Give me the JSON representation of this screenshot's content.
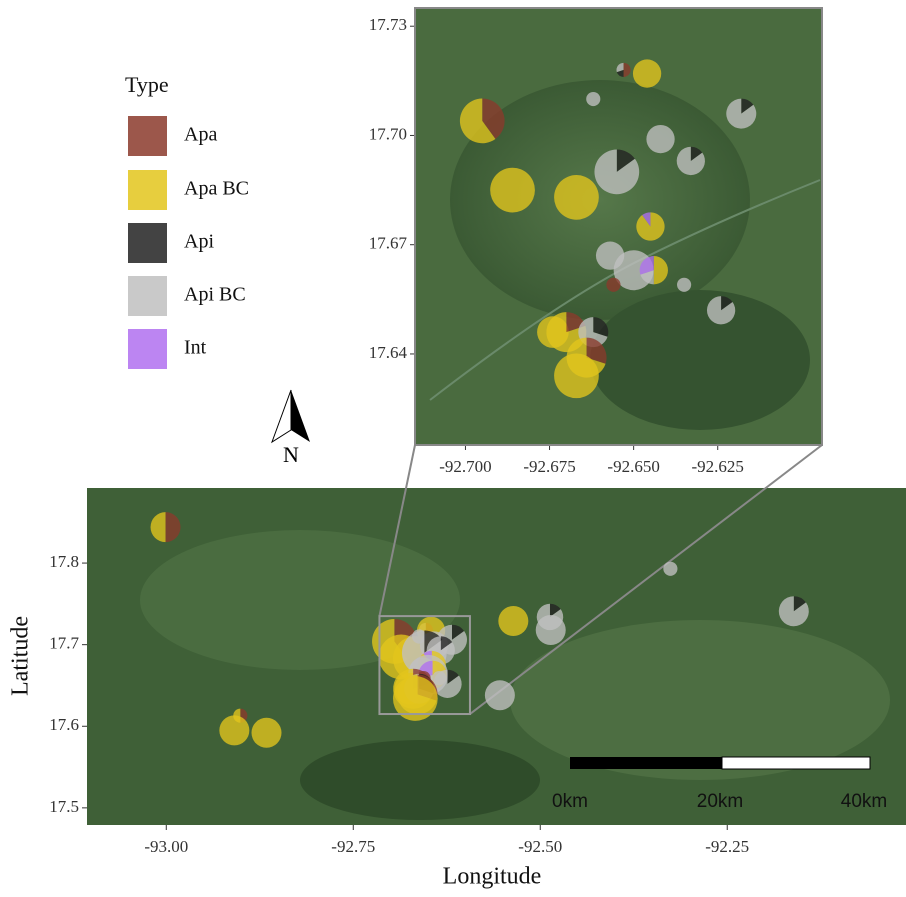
{
  "legend": {
    "title": "Type",
    "items": [
      {
        "label": "Apa",
        "color": "#8b3a2b"
      },
      {
        "label": "Apa BC",
        "color": "#e3c51c"
      },
      {
        "label": "Api",
        "color": "#222222"
      },
      {
        "label": "Api BC",
        "color": "#c0c0c0"
      },
      {
        "label": "Int",
        "color": "#b070f0"
      }
    ]
  },
  "main_map": {
    "xlim": [
      -93.106,
      -92.011
    ],
    "ylim": [
      17.479,
      17.892
    ],
    "xticks": [
      {
        "value": -93,
        "label": "-93.00"
      },
      -92.75,
      {
        "value": -92.5,
        "label": "-92.50"
      },
      -92.25
    ],
    "yticks": [
      17.5,
      17.6,
      17.7,
      17.8
    ],
    "xlabel": "Longitude",
    "ylabel": "Latitude"
  },
  "inset_map": {
    "xlim": [
      -92.715,
      -92.594
    ],
    "ylim": [
      17.615,
      17.735
    ],
    "xticks": [
      {
        "value": -92.7,
        "label": "-92.700"
      },
      -92.675,
      {
        "value": -92.65,
        "label": "-92.650"
      },
      -92.625
    ],
    "yticks": [
      17.64,
      17.67,
      {
        "value": 17.7,
        "label": "17.70"
      },
      17.73
    ]
  },
  "scale_bar": {
    "labels": [
      "0km",
      "20km",
      "40km"
    ]
  },
  "north_arrow": {
    "label": "N"
  },
  "points": [
    {
      "lon": -92.695,
      "lat": 17.704,
      "n": 20,
      "shares": [
        0.4,
        0.6,
        0,
        0,
        0
      ]
    },
    {
      "lon": -92.686,
      "lat": 17.685,
      "n": 20,
      "shares": [
        0,
        1,
        0,
        0,
        0
      ]
    },
    {
      "lon": -92.667,
      "lat": 17.683,
      "n": 20,
      "shares": [
        0,
        1,
        0,
        0,
        0
      ]
    },
    {
      "lon": -92.653,
      "lat": 17.718,
      "n": 2,
      "shares": [
        0.5,
        0,
        0.2,
        0.3,
        0
      ]
    },
    {
      "lon": -92.646,
      "lat": 17.717,
      "n": 8,
      "shares": [
        0,
        1,
        0,
        0,
        0
      ]
    },
    {
      "lon": -92.662,
      "lat": 17.71,
      "n": 2,
      "shares": [
        0,
        0,
        0,
        1,
        0
      ]
    },
    {
      "lon": -92.618,
      "lat": 17.706,
      "n": 9,
      "shares": [
        0,
        0,
        0.15,
        0.85,
        0
      ]
    },
    {
      "lon": -92.642,
      "lat": 17.699,
      "n": 8,
      "shares": [
        0,
        0,
        0,
        1,
        0
      ]
    },
    {
      "lon": -92.655,
      "lat": 17.69,
      "n": 20,
      "shares": [
        0,
        0,
        0.15,
        0.85,
        0
      ]
    },
    {
      "lon": -92.633,
      "lat": 17.693,
      "n": 8,
      "shares": [
        0,
        0,
        0.15,
        0.85,
        0
      ]
    },
    {
      "lon": -92.645,
      "lat": 17.675,
      "n": 8,
      "shares": [
        0,
        0.9,
        0,
        0,
        0.1
      ]
    },
    {
      "lon": -92.657,
      "lat": 17.667,
      "n": 8,
      "shares": [
        0,
        0,
        0,
        1,
        0
      ]
    },
    {
      "lon": -92.65,
      "lat": 17.663,
      "n": 16,
      "shares": [
        0,
        0,
        0,
        1,
        0
      ]
    },
    {
      "lon": -92.644,
      "lat": 17.663,
      "n": 8,
      "shares": [
        0,
        0.5,
        0,
        0.2,
        0.3
      ]
    },
    {
      "lon": -92.635,
      "lat": 17.659,
      "n": 2,
      "shares": [
        0,
        0,
        0,
        1,
        0
      ]
    },
    {
      "lon": -92.656,
      "lat": 17.659,
      "n": 2,
      "shares": [
        1,
        0,
        0,
        0,
        0
      ]
    },
    {
      "lon": -92.624,
      "lat": 17.652,
      "n": 8,
      "shares": [
        0,
        0,
        0.15,
        0.85,
        0
      ]
    },
    {
      "lon": -92.674,
      "lat": 17.646,
      "n": 10,
      "shares": [
        0,
        1,
        0,
        0,
        0
      ]
    },
    {
      "lon": -92.67,
      "lat": 17.646,
      "n": 16,
      "shares": [
        0.2,
        0.8,
        0,
        0,
        0
      ]
    },
    {
      "lon": -92.662,
      "lat": 17.646,
      "n": 9,
      "shares": [
        0,
        0,
        0.3,
        0.7,
        0
      ]
    },
    {
      "lon": -92.664,
      "lat": 17.639,
      "n": 16,
      "shares": [
        0.3,
        0.7,
        0,
        0,
        0
      ]
    },
    {
      "lon": -92.667,
      "lat": 17.634,
      "n": 20,
      "shares": [
        0,
        1,
        0,
        0,
        0
      ]
    },
    {
      "lon": -93.001,
      "lat": 17.844,
      "n": 9,
      "shares": [
        0.5,
        0.5,
        0,
        0,
        0
      ]
    },
    {
      "lon": -92.901,
      "lat": 17.613,
      "n": 2,
      "shares": [
        0.5,
        0.5,
        0,
        0,
        0
      ]
    },
    {
      "lon": -92.909,
      "lat": 17.595,
      "n": 9,
      "shares": [
        0,
        1,
        0,
        0,
        0
      ]
    },
    {
      "lon": -92.866,
      "lat": 17.592,
      "n": 9,
      "shares": [
        0,
        1,
        0,
        0,
        0
      ]
    },
    {
      "lon": -92.536,
      "lat": 17.729,
      "n": 9,
      "shares": [
        0,
        1,
        0,
        0,
        0
      ]
    },
    {
      "lon": -92.487,
      "lat": 17.734,
      "n": 7,
      "shares": [
        0,
        0,
        0.15,
        0.85,
        0
      ]
    },
    {
      "lon": -92.486,
      "lat": 17.718,
      "n": 9,
      "shares": [
        0,
        0,
        0,
        1,
        0
      ]
    },
    {
      "lon": -92.554,
      "lat": 17.638,
      "n": 9,
      "shares": [
        0,
        0,
        0,
        1,
        0
      ]
    },
    {
      "lon": -92.326,
      "lat": 17.793,
      "n": 2,
      "shares": [
        0,
        0,
        0,
        1,
        0
      ]
    },
    {
      "lon": -92.161,
      "lat": 17.741,
      "n": 9,
      "shares": [
        0,
        0,
        0.15,
        0.85,
        0
      ]
    }
  ]
}
